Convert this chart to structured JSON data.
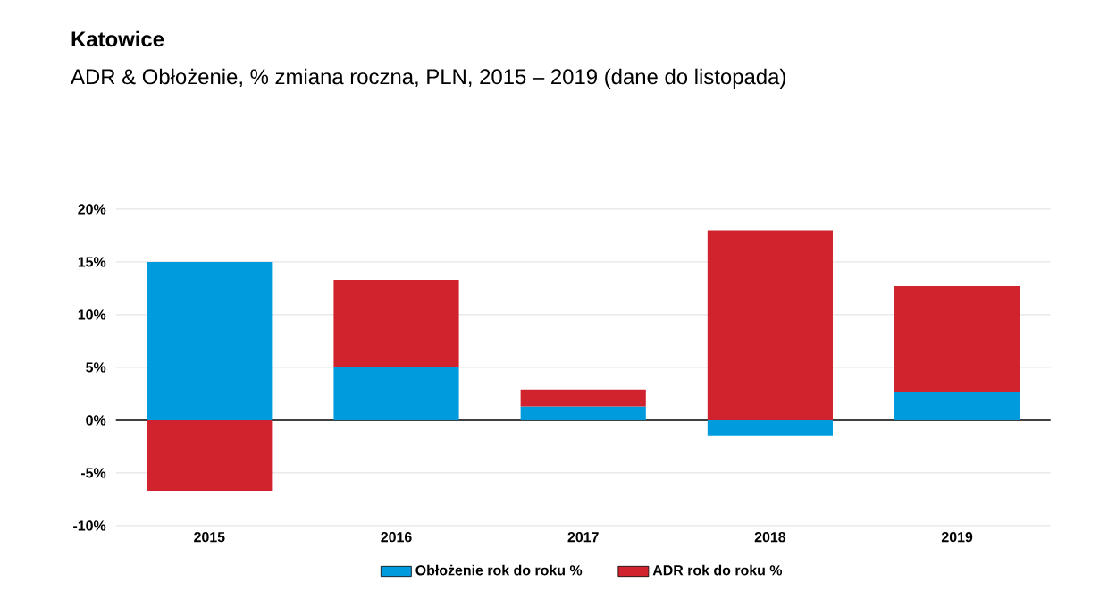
{
  "chart_data": {
    "type": "bar",
    "title": "Katowice",
    "subtitle": "ADR & Obłożenie, % zmiana roczna, PLN, 2015 – 2019 (dane do listopada)",
    "categories": [
      "2015",
      "2016",
      "2017",
      "2018",
      "2019"
    ],
    "series": [
      {
        "name": "Obłożenie rok do roku %",
        "color": "#009bdd",
        "values": [
          15.0,
          5.0,
          1.3,
          -1.5,
          2.7
        ]
      },
      {
        "name": "ADR rok do roku %",
        "color": "#d0232e",
        "values": [
          -6.7,
          8.3,
          1.6,
          18.0,
          10.0
        ]
      }
    ],
    "stacked": true,
    "ylim": [
      -10,
      20
    ],
    "yticks": [
      {
        "value": -10,
        "label": "-10%"
      },
      {
        "value": -5,
        "label": "-5%"
      },
      {
        "value": 0,
        "label": "0%"
      },
      {
        "value": 5,
        "label": "5%"
      },
      {
        "value": 10,
        "label": "10%"
      },
      {
        "value": 15,
        "label": "15%"
      },
      {
        "value": 20,
        "label": "20%"
      }
    ],
    "grid": "y",
    "legend": "bottom"
  }
}
